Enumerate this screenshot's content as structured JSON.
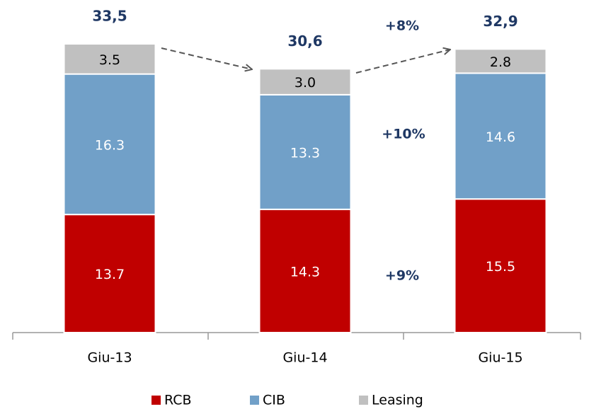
{
  "chart_data": {
    "type": "stacked_bar",
    "categories": [
      "Giu-13",
      "Giu-14",
      "Giu-15"
    ],
    "series": [
      {
        "name": "RCB",
        "color": "#c00000",
        "values": [
          13.7,
          14.3,
          15.5
        ],
        "value_labels": [
          "13.7",
          "14.3",
          "15.5"
        ]
      },
      {
        "name": "CIB",
        "color": "#71a0c8",
        "values": [
          16.3,
          13.3,
          14.6
        ],
        "value_labels": [
          "16.3",
          "13.3",
          "14.6"
        ]
      },
      {
        "name": "Leasing",
        "color": "#c0c0c0",
        "values": [
          3.5,
          3.0,
          2.8
        ],
        "value_labels": [
          "3.5",
          "3.0",
          "2.8"
        ]
      }
    ],
    "totals": [
      33.5,
      30.6,
      32.9
    ],
    "total_labels": [
      "33,5",
      "30,6",
      "32,9"
    ],
    "annotations": [
      "+8%",
      "+10%",
      "+9%"
    ]
  }
}
